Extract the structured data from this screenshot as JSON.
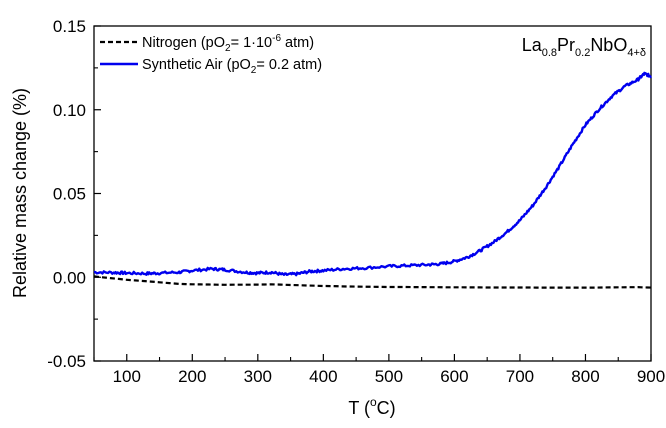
{
  "chart_data": {
    "type": "line",
    "xlabel": {
      "main": "T (",
      "sup": "o",
      "tail": "C)"
    },
    "ylabel": "Relative mass change (%)",
    "xlim": [
      50,
      900
    ],
    "ylim": [
      -0.05,
      0.15
    ],
    "x_ticks": [
      100,
      200,
      300,
      400,
      500,
      600,
      700,
      800,
      900
    ],
    "y_ticks": [
      -0.05,
      0.0,
      0.05,
      0.1,
      0.15
    ],
    "y_tick_labels": [
      "-0.05",
      "0.00",
      "0.05",
      "0.10",
      "0.15"
    ],
    "legend_position": "top-left",
    "grid": false,
    "annotation": {
      "parts": [
        {
          "text": "La",
          "sub": "0.8"
        },
        {
          "text": "Pr",
          "sub": "0.2"
        },
        {
          "text": "NbO",
          "sub": "4+δ"
        }
      ]
    },
    "series": [
      {
        "name": "Nitrogen",
        "legend": {
          "a": "Nitrogen (pO",
          "sub": "2",
          "b": "= 1·10",
          "sup": "-6",
          "c": " atm)"
        },
        "color": "#000000",
        "style": "dashed",
        "points": [
          [
            50,
            0.0005
          ],
          [
            100,
            -0.0015
          ],
          [
            150,
            -0.003
          ],
          [
            180,
            -0.004
          ],
          [
            200,
            -0.0042
          ],
          [
            250,
            -0.0045
          ],
          [
            300,
            -0.0044
          ],
          [
            320,
            -0.0042
          ],
          [
            350,
            -0.0046
          ],
          [
            400,
            -0.0052
          ],
          [
            450,
            -0.0056
          ],
          [
            500,
            -0.0058
          ],
          [
            550,
            -0.0059
          ],
          [
            600,
            -0.006
          ],
          [
            650,
            -0.0061
          ],
          [
            700,
            -0.0061
          ],
          [
            750,
            -0.0062
          ],
          [
            800,
            -0.0062
          ],
          [
            850,
            -0.006
          ],
          [
            880,
            -0.0059
          ],
          [
            900,
            -0.0062
          ]
        ]
      },
      {
        "name": "Synthetic Air",
        "legend": {
          "a": "Synthetic Air (pO",
          "sub": "2",
          "b": "= 0.2 atm)",
          "sup": "",
          "c": ""
        },
        "color": "#0000ee",
        "style": "solid",
        "points": [
          [
            50,
            0.003
          ],
          [
            80,
            0.0028
          ],
          [
            100,
            0.0025
          ],
          [
            130,
            0.0022
          ],
          [
            150,
            0.0025
          ],
          [
            180,
            0.003
          ],
          [
            200,
            0.004
          ],
          [
            230,
            0.005
          ],
          [
            250,
            0.0045
          ],
          [
            280,
            0.003
          ],
          [
            300,
            0.0025
          ],
          [
            320,
            0.003
          ],
          [
            340,
            0.0015
          ],
          [
            360,
            0.002
          ],
          [
            380,
            0.0035
          ],
          [
            400,
            0.004
          ],
          [
            430,
            0.005
          ],
          [
            460,
            0.0055
          ],
          [
            500,
            0.0065
          ],
          [
            530,
            0.007
          ],
          [
            560,
            0.0075
          ],
          [
            580,
            0.008
          ],
          [
            600,
            0.0095
          ],
          [
            620,
            0.012
          ],
          [
            640,
            0.016
          ],
          [
            660,
            0.021
          ],
          [
            680,
            0.027
          ],
          [
            700,
            0.034
          ],
          [
            720,
            0.043
          ],
          [
            740,
            0.054
          ],
          [
            760,
            0.066
          ],
          [
            780,
            0.079
          ],
          [
            800,
            0.091
          ],
          [
            820,
            0.1
          ],
          [
            840,
            0.108
          ],
          [
            860,
            0.114
          ],
          [
            880,
            0.118
          ],
          [
            890,
            0.1215
          ],
          [
            900,
            0.12
          ]
        ]
      }
    ]
  }
}
